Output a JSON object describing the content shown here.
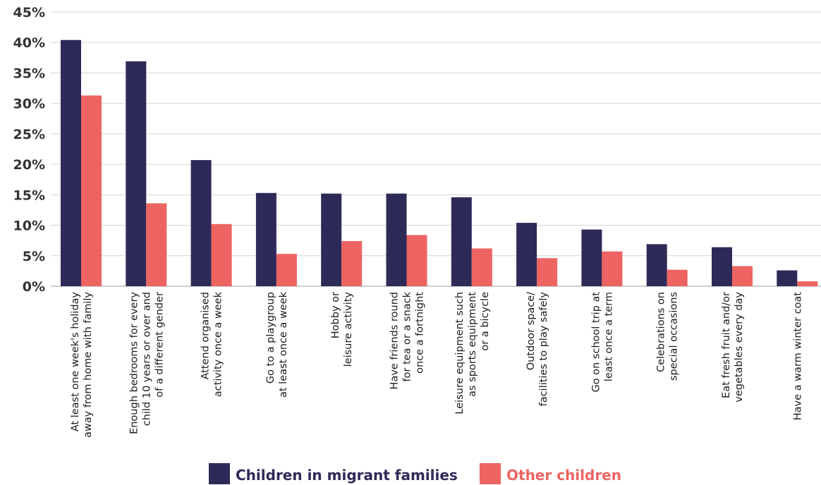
{
  "chart_data": {
    "type": "bar",
    "title": "",
    "xlabel": "",
    "ylabel": "",
    "ylim": [
      0,
      45
    ],
    "yticks": [
      "0%",
      "5%",
      "10%",
      "15%",
      "20%",
      "25%",
      "30%",
      "35%",
      "40%",
      "45%"
    ],
    "grid": true,
    "legend_position": "bottom",
    "categories": [
      [
        "At least one week's holiday",
        "away from home with family"
      ],
      [
        "Enough bedrooms for every",
        "child 10 years or over and",
        "of a different gender"
      ],
      [
        "Attend organised",
        "activity once a week"
      ],
      [
        "Go to a playgroup",
        "at least once a week"
      ],
      [
        "Hobby or",
        "leisure activity"
      ],
      [
        "Have friends round",
        "for tea or a snack",
        "once a fortnight"
      ],
      [
        "Leisure equipment such",
        "as sports equipment",
        "or a bicycle"
      ],
      [
        "Outdoor space/",
        "facilities to play safely"
      ],
      [
        "Go on school trip at",
        "least once a term"
      ],
      [
        "Celebrations on",
        "special occasions"
      ],
      [
        "Eat fresh fruit and/or",
        "vegetables every day"
      ],
      [
        "Have a warm winter coat"
      ]
    ],
    "series": [
      {
        "name": "Children in migrant families",
        "color": "#2e2a58",
        "values": [
          40.4,
          36.9,
          20.7,
          15.3,
          15.2,
          15.2,
          14.6,
          10.4,
          9.3,
          6.9,
          6.4,
          2.6
        ]
      },
      {
        "name": "Other children",
        "color": "#ed6462",
        "values": [
          31.3,
          13.6,
          10.2,
          5.3,
          7.4,
          8.4,
          6.2,
          4.6,
          5.7,
          2.7,
          3.3,
          0.8
        ]
      }
    ]
  }
}
